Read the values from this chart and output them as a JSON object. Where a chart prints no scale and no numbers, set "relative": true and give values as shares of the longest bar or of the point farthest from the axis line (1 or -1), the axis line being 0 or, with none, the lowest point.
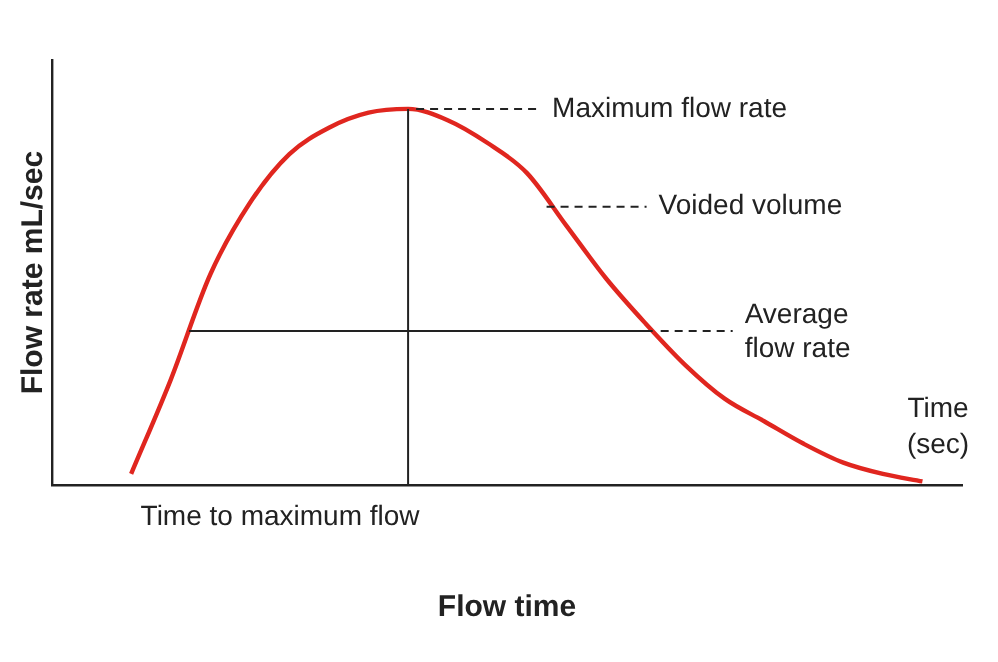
{
  "chart_data": {
    "type": "line",
    "relative": true,
    "xlabel": "Flow time",
    "ylabel": "Flow rate mL/sec",
    "categories": [
      null,
      null,
      null,
      null,
      null,
      null,
      null,
      null,
      null,
      null,
      null,
      null,
      null,
      null,
      null,
      null,
      null,
      null,
      null,
      null,
      null,
      null,
      null,
      null
    ],
    "series": [
      {
        "color": "#e0261f",
        "values": [
          null,
          null,
          0.03,
          0.28,
          0.56,
          0.75,
          0.88,
          0.95,
          0.99,
          1,
          0.97,
          0.91,
          0.83,
          0.69,
          0.55,
          0.43,
          0.32,
          0.23,
          0.17,
          0.11,
          0.06,
          0.03,
          0.01,
          null
        ]
      }
    ],
    "ref_lines": [
      {
        "axis": "y",
        "value": 0.41,
        "label": "Average flow rate"
      }
    ],
    "annotations": [
      "Maximum flow rate",
      "Voided volume",
      "Time to maximum flow",
      "Time (sec)"
    ],
    "grid": false,
    "legend": false,
    "marker": "none",
    "line_style": "solid"
  }
}
